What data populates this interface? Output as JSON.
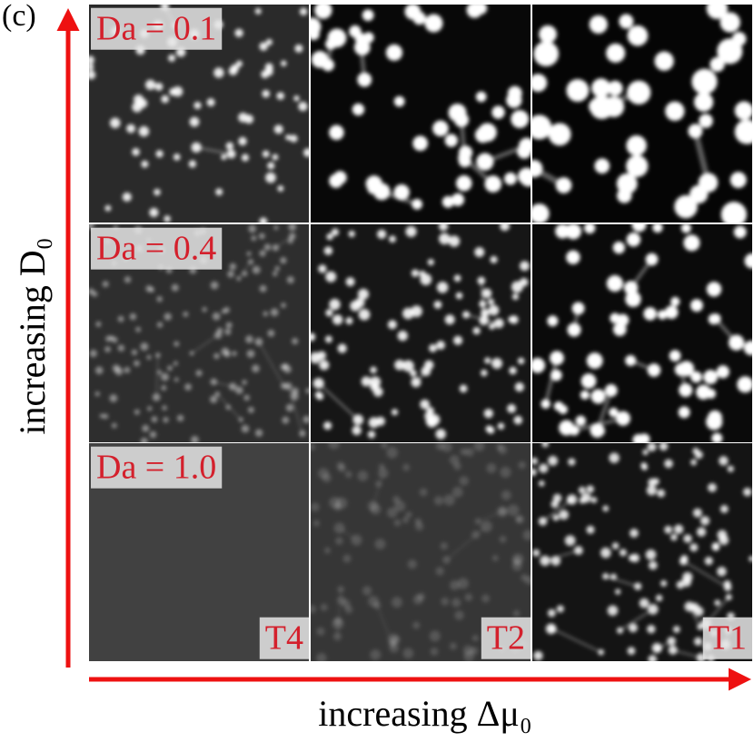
{
  "panel_label": "(c)",
  "y_axis_label": "increasing D₀",
  "x_axis_label": "increasing Δμ₀",
  "rows": [
    "Da = 0.1",
    "Da = 0.4",
    "Da = 1.0"
  ],
  "columns": [
    "T4",
    "T2",
    "T1"
  ]
}
